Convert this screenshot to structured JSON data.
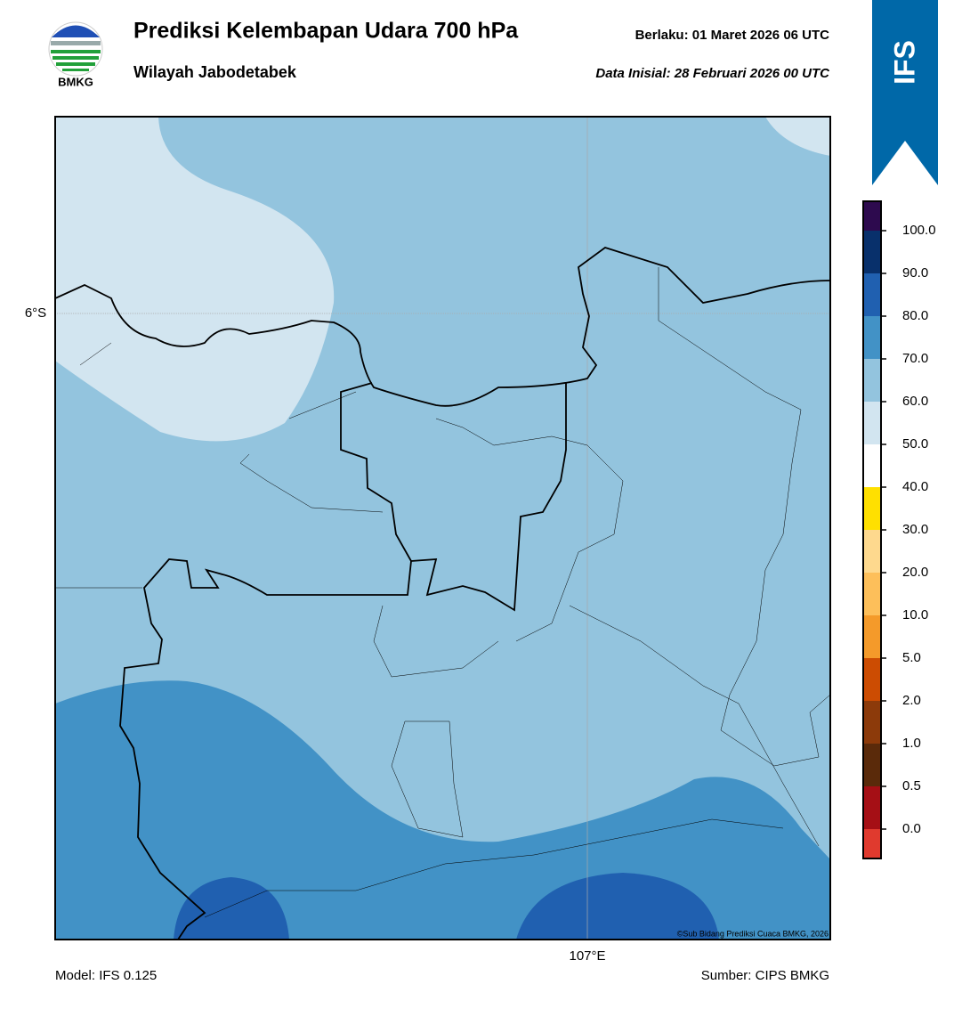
{
  "header": {
    "title": "Prediksi Kelembapan Udara 700 hPa",
    "subtitle": "Wilayah Jabodetabek",
    "valid": "Berlaku:  01 Maret 2026 06 UTC",
    "init": "Data Inisial:  28 Februari 2026 00 UTC",
    "logo": "BMKG",
    "badge": "IFS"
  },
  "map": {
    "lat_label": "6°S",
    "lon_label": "107°E",
    "copyright": "©Sub Bidang Prediksi Cuaca BMKG, 2026"
  },
  "colorbar": {
    "ticks": [
      "0.0",
      "0.5",
      "1.0",
      "2.0",
      "5.0",
      "10.0",
      "20.0",
      "30.0",
      "40.0",
      "50.0",
      "60.0",
      "70.0",
      "80.0",
      "90.0",
      "100.0"
    ],
    "colors": [
      "#e03a2e",
      "#a50f15",
      "#5a2a0a",
      "#8c3a0a",
      "#cc4c02",
      "#f49a2a",
      "#fdbf5a",
      "#fed98e",
      "#ffe000",
      "#ffffff",
      "#d2e5f0",
      "#93c4de",
      "#4292c6",
      "#2060b0",
      "#08306b",
      "#2d0a4e"
    ]
  },
  "footer": {
    "model": "Model: IFS 0.125",
    "source": "Sumber: CIPS BMKG"
  }
}
